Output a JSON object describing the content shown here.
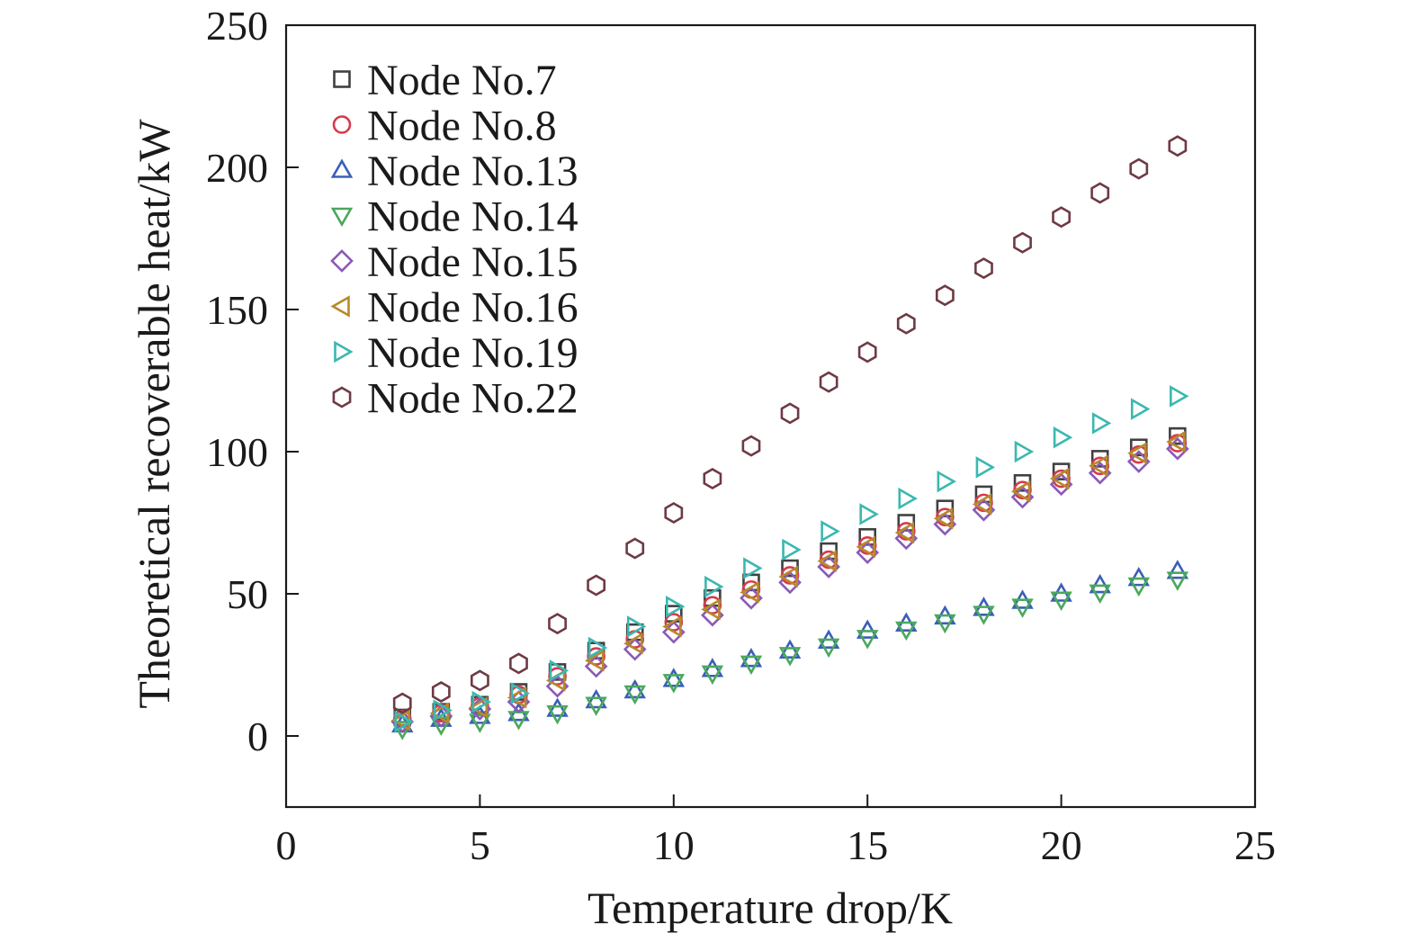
{
  "chart_data": {
    "type": "scatter",
    "title": "",
    "xlabel": "Temperature drop/K",
    "ylabel": "Theoretical recoverable heat/kW",
    "xlim": [
      0,
      25
    ],
    "ylim": [
      -25,
      250
    ],
    "xticks": [
      0,
      5,
      10,
      15,
      20,
      25
    ],
    "yticks": [
      0,
      50,
      100,
      150,
      200,
      250
    ],
    "grid": false,
    "legend_position": "top-left",
    "x": [
      3,
      4,
      5,
      6,
      7,
      8,
      9,
      10,
      11,
      12,
      13,
      14,
      15,
      16,
      17,
      18,
      19,
      20,
      21,
      22,
      23
    ],
    "series": [
      {
        "name": "Node No.7",
        "marker": "square",
        "color": "#404040",
        "values": [
          6.5,
          8.5,
          11,
          15.5,
          22.5,
          30,
          36.5,
          43,
          48.5,
          54,
          59,
          65,
          70,
          75,
          80,
          85,
          89,
          93,
          97.5,
          101.5,
          105.5
        ]
      },
      {
        "name": "Node No.8",
        "marker": "circle",
        "color": "#d63a4a",
        "values": [
          6,
          8,
          10.5,
          14.5,
          21,
          28,
          34,
          40,
          46,
          51.5,
          56.5,
          62,
          67,
          72,
          77,
          82,
          86.5,
          90.5,
          95,
          99,
          103
        ]
      },
      {
        "name": "Node No.13",
        "marker": "triangle-up",
        "color": "#3a5fb8",
        "values": [
          4,
          6,
          7,
          8,
          9.5,
          12.5,
          16,
          20,
          23.5,
          27,
          30,
          33.5,
          37,
          39.5,
          42,
          45,
          47.5,
          50,
          53,
          55.5,
          58
        ]
      },
      {
        "name": "Node No.14",
        "marker": "triangle-down",
        "color": "#4aa85c",
        "values": [
          2.5,
          4,
          5,
          6,
          8,
          11,
          15,
          19,
          22,
          25.5,
          28.5,
          31.5,
          34.5,
          37.5,
          40,
          43,
          45.5,
          48,
          50.5,
          53,
          55
        ]
      },
      {
        "name": "Node No.15",
        "marker": "diamond",
        "color": "#8a5ab8",
        "values": [
          5,
          7,
          9.5,
          12,
          17.5,
          24.5,
          30.5,
          36.5,
          42.5,
          48.5,
          54,
          59.5,
          64.5,
          69.5,
          74.5,
          79.5,
          84,
          88.5,
          92.5,
          96.5,
          101
        ]
      },
      {
        "name": "Node No.16",
        "marker": "triangle-left",
        "color": "#b8892a",
        "values": [
          5.5,
          8,
          10,
          13.5,
          19.5,
          26.5,
          32.5,
          38.5,
          44.5,
          50.5,
          56,
          61.5,
          66.5,
          71.5,
          76.5,
          81.5,
          86,
          90.5,
          95,
          99.5,
          103.5
        ]
      },
      {
        "name": "Node No.19",
        "marker": "triangle-right",
        "color": "#3ab8b0",
        "values": [
          5,
          9,
          12,
          15,
          23,
          31,
          38.5,
          45.5,
          52.5,
          59,
          65.5,
          72,
          78,
          83.5,
          89.5,
          94.5,
          100,
          105,
          110,
          115,
          119.5
        ]
      },
      {
        "name": "Node No.22",
        "marker": "hexagon",
        "color": "#6e3a44",
        "values": [
          11.5,
          15.5,
          19.5,
          25.5,
          39.5,
          53,
          66,
          78.5,
          90.5,
          102,
          113.5,
          124.5,
          135,
          145,
          155,
          164.5,
          173.5,
          182.5,
          191,
          199.5,
          207.5
        ]
      }
    ]
  }
}
